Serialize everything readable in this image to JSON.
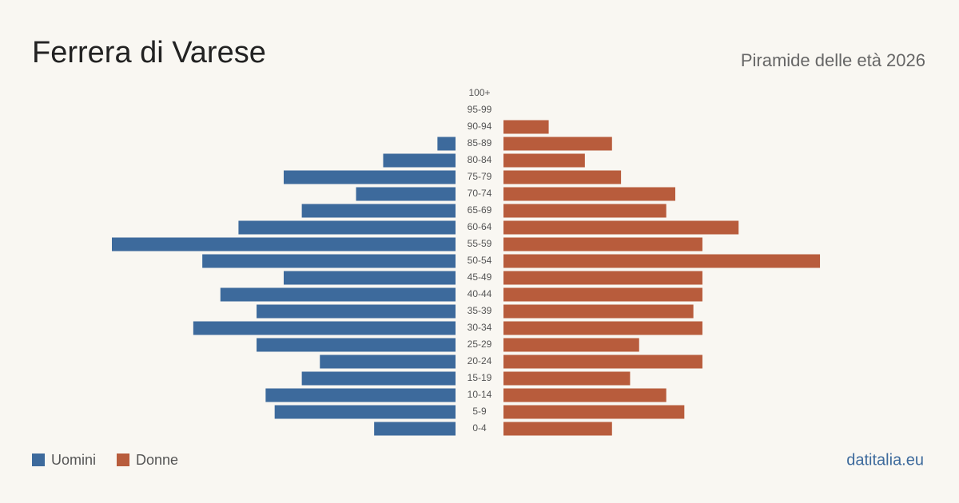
{
  "chart_data": {
    "type": "pyramid",
    "title": "Ferrera di Varese",
    "subtitle": "Piramide delle età 2026",
    "source": "datitalia.eu",
    "categories": [
      "0-4",
      "5-9",
      "10-14",
      "15-19",
      "20-24",
      "25-29",
      "30-34",
      "35-39",
      "40-44",
      "45-49",
      "50-54",
      "55-59",
      "60-64",
      "65-69",
      "70-74",
      "75-79",
      "80-84",
      "85-89",
      "90-94",
      "95-99",
      "100+"
    ],
    "series": [
      {
        "name": "Uomini",
        "color": "#3d6a9c",
        "values": [
          9,
          20,
          21,
          17,
          15,
          22,
          29,
          22,
          26,
          19,
          28,
          38,
          24,
          17,
          11,
          19,
          8,
          2,
          0,
          0,
          0
        ]
      },
      {
        "name": "Donne",
        "color": "#b85c3c",
        "values": [
          12,
          20,
          18,
          14,
          22,
          15,
          22,
          21,
          22,
          22,
          35,
          22,
          26,
          18,
          19,
          13,
          9,
          12,
          5,
          0,
          0
        ]
      }
    ]
  }
}
